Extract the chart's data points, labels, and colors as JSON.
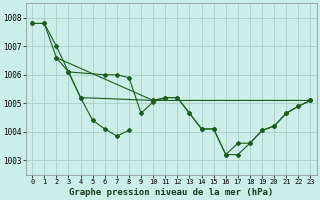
{
  "background_color": "#cceee8",
  "grid_color": "#aad4cc",
  "line_color": "#1a5e1a",
  "title": "Graphe pression niveau de la mer (hPa)",
  "xlim": [
    -0.5,
    23.5
  ],
  "ylim": [
    1002.5,
    1008.5
  ],
  "yticks": [
    1003,
    1004,
    1005,
    1006,
    1007,
    1008
  ],
  "xticks": [
    0,
    1,
    2,
    3,
    4,
    5,
    6,
    7,
    8,
    9,
    10,
    11,
    12,
    13,
    14,
    15,
    16,
    17,
    18,
    19,
    20,
    21,
    22,
    23
  ],
  "series": [
    {
      "x": [
        0,
        1,
        2,
        3,
        4,
        5,
        6,
        7,
        8
      ],
      "y": [
        1007.8,
        1007.8,
        1007.0,
        1006.1,
        1005.2,
        1004.4,
        1004.1,
        1003.85,
        1004.05
      ]
    },
    {
      "x": [
        0,
        1,
        2,
        3,
        4,
        10,
        23
      ],
      "y": [
        1007.8,
        1007.8,
        1006.6,
        1006.1,
        1005.2,
        1005.1,
        1005.1
      ]
    },
    {
      "x": [
        3,
        6,
        7,
        8,
        9,
        10,
        11,
        12,
        13,
        14,
        15,
        16,
        17,
        18,
        19,
        20,
        21,
        22,
        23
      ],
      "y": [
        1006.1,
        1006.0,
        1006.0,
        1005.9,
        1004.65,
        1005.05,
        1005.2,
        1005.2,
        1004.65,
        1004.1,
        1004.1,
        1003.2,
        1003.2,
        1003.6,
        1004.05,
        1004.2,
        1004.65,
        1004.9,
        1005.1
      ]
    },
    {
      "x": [
        2,
        10,
        11,
        12,
        13,
        14,
        15,
        16,
        17,
        18,
        19,
        20,
        21,
        22,
        23
      ],
      "y": [
        1006.6,
        1005.1,
        1005.2,
        1005.2,
        1004.65,
        1004.1,
        1004.1,
        1003.2,
        1003.6,
        1003.6,
        1004.05,
        1004.2,
        1004.65,
        1004.9,
        1005.1
      ]
    }
  ]
}
